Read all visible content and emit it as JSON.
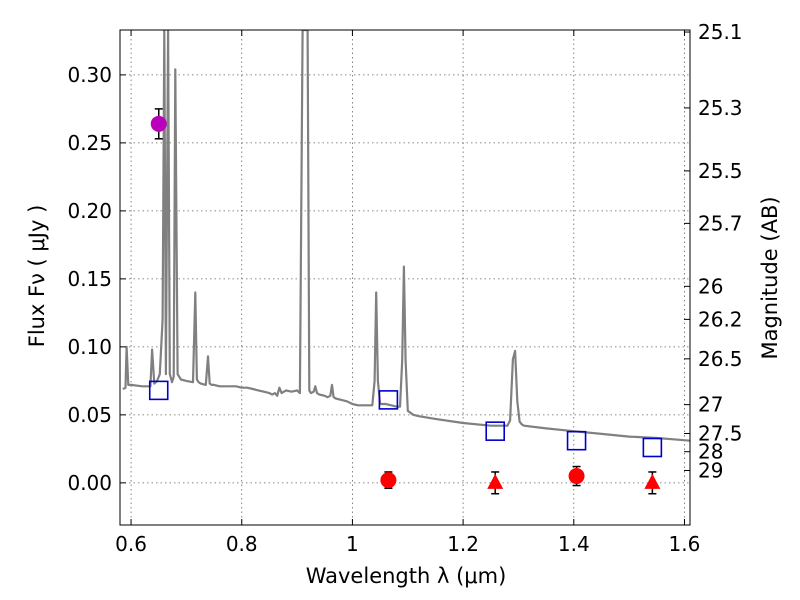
{
  "chart_data": {
    "type": "scatter",
    "title": "",
    "xlabel": "Wavelength  λ (μm)",
    "ylabel": "Flux  Fν  ( μJy )",
    "ylabel_right": "Magnitude (AB)",
    "xlim": [
      0.58,
      1.61
    ],
    "ylim": [
      -0.031,
      0.333
    ],
    "grid": true,
    "x_ticks": [
      0.6,
      0.8,
      1.0,
      1.2,
      1.4,
      1.6
    ],
    "x_tick_labels": [
      "0.6",
      "0.8",
      "1",
      "1.2",
      "1.4",
      "1.6"
    ],
    "y_ticks": [
      0.0,
      0.05,
      0.1,
      0.15,
      0.2,
      0.25,
      0.3
    ],
    "y_tick_labels": [
      "0.00",
      "0.05",
      "0.10",
      "0.15",
      "0.20",
      "0.25",
      "0.30"
    ],
    "right_ticks": [
      {
        "flux": 0.3315,
        "label": "25.1"
      },
      {
        "flux": 0.2757,
        "label": "25.3"
      },
      {
        "flux": 0.2294,
        "label": "25.5"
      },
      {
        "flux": 0.1908,
        "label": "25.7"
      },
      {
        "flux": 0.1445,
        "label": "26"
      },
      {
        "flux": 0.1202,
        "label": "26.2"
      },
      {
        "flux": 0.0912,
        "label": "26.5"
      },
      {
        "flux": 0.0575,
        "label": "27"
      },
      {
        "flux": 0.0363,
        "label": "27.5"
      },
      {
        "flux": 0.0229,
        "label": "28"
      },
      {
        "flux": 0.0091,
        "label": "29"
      }
    ],
    "colors": {
      "model": "#808080",
      "model_photometry": "#0000cc",
      "detection": "#ff0000",
      "halpha_point": "#bb00bb",
      "errorbar": "#000000"
    },
    "series": [
      {
        "name": "model spectrum",
        "kind": "line",
        "x": [
          0.585,
          0.59,
          0.592,
          0.595,
          0.6,
          0.62,
          0.635,
          0.638,
          0.642,
          0.647,
          0.652,
          0.657,
          0.66,
          0.663,
          0.667,
          0.67,
          0.674,
          0.677,
          0.68,
          0.684,
          0.69,
          0.7,
          0.712,
          0.716,
          0.719,
          0.722,
          0.726,
          0.735,
          0.739,
          0.742,
          0.746,
          0.75,
          0.76,
          0.77,
          0.78,
          0.79,
          0.8,
          0.81,
          0.82,
          0.83,
          0.84,
          0.85,
          0.855,
          0.86,
          0.864,
          0.868,
          0.872,
          0.88,
          0.89,
          0.9,
          0.905,
          0.91,
          0.913,
          0.916,
          0.919,
          0.922,
          0.925,
          0.93,
          0.933,
          0.936,
          0.94,
          0.95,
          0.955,
          0.96,
          0.963,
          0.966,
          0.97,
          0.98,
          0.99,
          1.0,
          1.01,
          1.02,
          1.03,
          1.036,
          1.04,
          1.043,
          1.046,
          1.05,
          1.06,
          1.07,
          1.08,
          1.086,
          1.09,
          1.093,
          1.096,
          1.1,
          1.11,
          1.12,
          1.15,
          1.2,
          1.25,
          1.27,
          1.28,
          1.285,
          1.29,
          1.294,
          1.298,
          1.302,
          1.306,
          1.31,
          1.35,
          1.4,
          1.45,
          1.5,
          1.55,
          1.58,
          1.61
        ],
        "y": [
          0.069,
          0.07,
          0.1,
          0.072,
          0.072,
          0.071,
          0.071,
          0.098,
          0.073,
          0.075,
          0.08,
          0.12,
          0.333,
          0.08,
          0.333,
          0.08,
          0.074,
          0.078,
          0.304,
          0.08,
          0.076,
          0.075,
          0.074,
          0.14,
          0.076,
          0.074,
          0.073,
          0.072,
          0.093,
          0.073,
          0.072,
          0.072,
          0.071,
          0.071,
          0.071,
          0.071,
          0.07,
          0.07,
          0.069,
          0.068,
          0.067,
          0.066,
          0.065,
          0.066,
          0.064,
          0.07,
          0.066,
          0.068,
          0.067,
          0.068,
          0.066,
          0.333,
          0.333,
          0.333,
          0.333,
          0.068,
          0.066,
          0.067,
          0.071,
          0.066,
          0.065,
          0.064,
          0.063,
          0.064,
          0.072,
          0.063,
          0.062,
          0.061,
          0.06,
          0.058,
          0.057,
          0.057,
          0.057,
          0.057,
          0.075,
          0.14,
          0.075,
          0.058,
          0.058,
          0.057,
          0.056,
          0.056,
          0.09,
          0.159,
          0.09,
          0.053,
          0.05,
          0.049,
          0.047,
          0.044,
          0.042,
          0.042,
          0.042,
          0.046,
          0.091,
          0.097,
          0.06,
          0.045,
          0.043,
          0.042,
          0.04,
          0.038,
          0.036,
          0.034,
          0.033,
          0.032,
          0.031
        ]
      },
      {
        "name": "model photometry",
        "kind": "open-square",
        "x": [
          0.65,
          1.065,
          1.258,
          1.405,
          1.542
        ],
        "y": [
          0.068,
          0.061,
          0.038,
          0.031,
          0.026
        ]
      },
      {
        "name": "H-alpha measurement",
        "kind": "filled-circle",
        "x": [
          0.65
        ],
        "y": [
          0.264
        ],
        "err": [
          0.011
        ]
      },
      {
        "name": "detections",
        "kind": "filled-circle",
        "x": [
          1.065,
          1.405
        ],
        "y": [
          0.002,
          0.005
        ],
        "err": [
          0.006,
          0.007
        ]
      },
      {
        "name": "upper limits",
        "kind": "triangle",
        "x": [
          1.258,
          1.542
        ],
        "y": [
          0.0,
          0.0
        ],
        "err": [
          0.008,
          0.008
        ]
      }
    ]
  }
}
